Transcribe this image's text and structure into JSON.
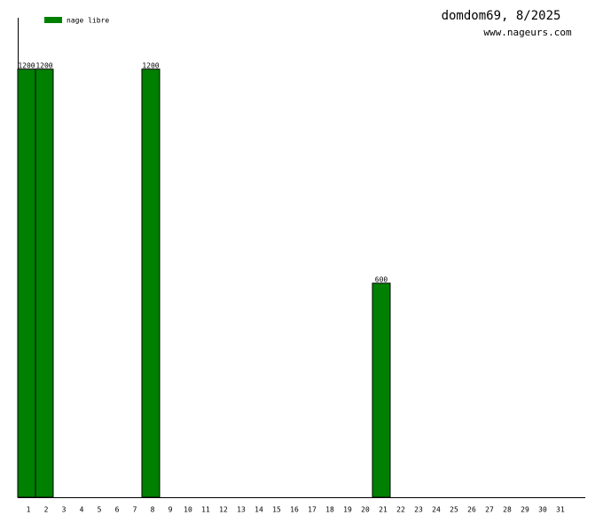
{
  "chart_data": {
    "type": "bar",
    "title": "domdom69, 8/2025",
    "subtitle": "www.nageurs.com",
    "categories": [
      "1",
      "2",
      "3",
      "4",
      "5",
      "6",
      "7",
      "8",
      "9",
      "10",
      "11",
      "12",
      "13",
      "14",
      "15",
      "16",
      "17",
      "18",
      "19",
      "20",
      "21",
      "22",
      "23",
      "24",
      "25",
      "26",
      "27",
      "28",
      "29",
      "30",
      "31"
    ],
    "series": [
      {
        "name": "nage libre",
        "color": "#008000",
        "values": [
          1200,
          1200,
          null,
          null,
          null,
          null,
          null,
          1200,
          null,
          null,
          null,
          null,
          null,
          null,
          null,
          null,
          null,
          null,
          null,
          null,
          600,
          null,
          null,
          null,
          null,
          null,
          null,
          null,
          null,
          null,
          null
        ]
      }
    ],
    "ylim": [
      0,
      1344
    ]
  }
}
